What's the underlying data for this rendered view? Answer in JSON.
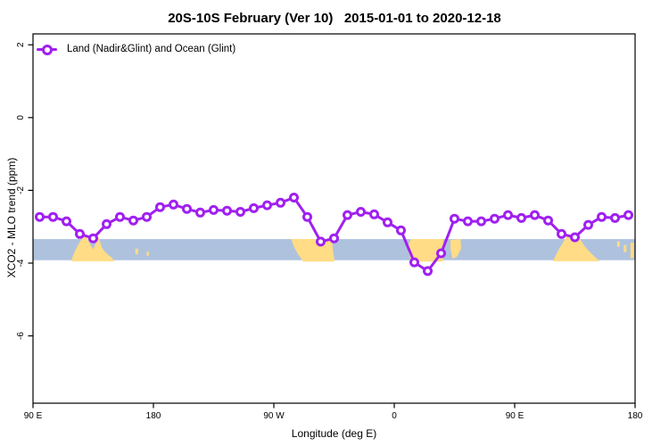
{
  "title": "20S-10S February (Ver 10)   2015-01-01 to 2020-12-18",
  "legend": {
    "label": "Land (Nadir&Glint) and Ocean (Glint)"
  },
  "chart_data": {
    "type": "line",
    "title": "20S-10S February (Ver 10)   2015-01-01 to 2020-12-18",
    "xlabel": "Longitude (deg E)",
    "ylabel": "XCO2 - MLO trend (ppm)",
    "xlim": [
      90,
      540
    ],
    "ylim": [
      -7.85,
      2.3
    ],
    "grid": false,
    "legend_position": "top-left",
    "x_ticks": [
      {
        "x": 90,
        "label": "90 E"
      },
      {
        "x": 180,
        "label": "180"
      },
      {
        "x": 270,
        "label": "90 W"
      },
      {
        "x": 360,
        "label": "0"
      },
      {
        "x": 450,
        "label": "90 E"
      },
      {
        "x": 540,
        "label": "180"
      }
    ],
    "y_ticks": [
      {
        "y": 2,
        "label": "2"
      },
      {
        "y": 0,
        "label": "0"
      },
      {
        "y": -2,
        "label": "-2"
      },
      {
        "y": -4,
        "label": "-4"
      },
      {
        "y": -6,
        "label": "-6"
      }
    ],
    "series": [
      {
        "name": "Land (Nadir&Glint) and Ocean (Glint)",
        "x_deg": [
          95,
          105,
          115,
          125,
          135,
          145,
          155,
          165,
          175,
          185,
          195,
          205,
          215,
          225,
          235,
          245,
          255,
          265,
          275,
          285,
          295,
          305,
          315,
          325,
          335,
          345,
          355,
          365,
          375,
          385,
          395,
          405,
          415,
          425,
          435,
          445,
          455,
          465,
          475,
          485,
          495,
          505,
          515,
          525,
          535
        ],
        "y_ppm": [
          -2.73,
          -2.73,
          -2.85,
          -3.2,
          -3.32,
          -2.93,
          -2.73,
          -2.83,
          -2.73,
          -2.46,
          -2.39,
          -2.51,
          -2.61,
          -2.54,
          -2.56,
          -2.59,
          -2.49,
          -2.41,
          -2.34,
          -2.2,
          -2.73,
          -3.41,
          -3.32,
          -2.68,
          -2.59,
          -2.66,
          -2.88,
          -3.1,
          -3.98,
          -4.22,
          -3.73,
          -2.78,
          -2.85,
          -2.85,
          -2.78,
          -2.68,
          -2.76,
          -2.68,
          -2.83,
          -3.2,
          -3.29,
          -2.95,
          -2.73,
          -2.76,
          -2.68
        ]
      }
    ],
    "ocean_band": {
      "top_ppm": -3.34,
      "bottom_ppm": -3.92
    },
    "land_patches": [
      {
        "name": "australia",
        "points": [
          [
            118.5,
            -3.95
          ],
          [
            120,
            -3.78
          ],
          [
            122,
            -3.62
          ],
          [
            124.5,
            -3.45
          ],
          [
            127,
            -3.3
          ],
          [
            129,
            -3.22
          ],
          [
            131,
            -3.35
          ],
          [
            133,
            -3.5
          ],
          [
            135,
            -3.62
          ],
          [
            137,
            -3.45
          ],
          [
            138.5,
            -3.24
          ],
          [
            140,
            -3.4
          ],
          [
            141.5,
            -3.58
          ],
          [
            144,
            -3.7
          ],
          [
            146.5,
            -3.78
          ],
          [
            149,
            -3.86
          ],
          [
            151,
            -3.95
          ]
        ]
      },
      {
        "name": "vanuatu-islands",
        "points": [
          [
            166.5,
            -3.6
          ],
          [
            168.5,
            -3.6
          ],
          [
            168.5,
            -3.76
          ],
          [
            166.5,
            -3.76
          ]
        ]
      },
      {
        "name": "fiji-islands",
        "points": [
          [
            175,
            -3.68
          ],
          [
            176.5,
            -3.68
          ],
          [
            176.5,
            -3.8
          ],
          [
            175,
            -3.8
          ]
        ]
      },
      {
        "name": "south-america",
        "points": [
          [
            283,
            -3.34
          ],
          [
            313.5,
            -3.34
          ],
          [
            314,
            -3.6
          ],
          [
            315.5,
            -3.96
          ],
          [
            292,
            -3.96
          ],
          [
            288,
            -3.75
          ],
          [
            285,
            -3.55
          ]
        ]
      },
      {
        "name": "africa",
        "points": [
          [
            370.5,
            -3.5
          ],
          [
            372.5,
            -3.34
          ],
          [
            396.5,
            -3.34
          ],
          [
            396.5,
            -3.96
          ],
          [
            373,
            -3.96
          ],
          [
            370.5,
            -3.7
          ]
        ]
      },
      {
        "name": "madagascar",
        "points": [
          [
            402,
            -3.36
          ],
          [
            409.5,
            -3.34
          ],
          [
            410,
            -3.6
          ],
          [
            407,
            -3.82
          ],
          [
            403.5,
            -3.88
          ],
          [
            402,
            -3.6
          ]
        ]
      },
      {
        "name": "australia-wrap",
        "points": [
          [
            478.5,
            -3.95
          ],
          [
            480.5,
            -3.8
          ],
          [
            483,
            -3.62
          ],
          [
            486,
            -3.45
          ],
          [
            488.5,
            -3.28
          ],
          [
            490.5,
            -3.2
          ],
          [
            492.5,
            -3.35
          ],
          [
            494.5,
            -3.28
          ],
          [
            497,
            -3.22
          ],
          [
            499.5,
            -3.38
          ],
          [
            502,
            -3.52
          ],
          [
            505,
            -3.65
          ],
          [
            508.5,
            -3.78
          ],
          [
            511.5,
            -3.88
          ],
          [
            513.5,
            -3.95
          ]
        ]
      },
      {
        "name": "island-speck-1",
        "points": [
          [
            526.5,
            -3.4
          ],
          [
            528.5,
            -3.4
          ],
          [
            528.5,
            -3.55
          ],
          [
            526.5,
            -3.55
          ]
        ]
      },
      {
        "name": "island-speck-2",
        "points": [
          [
            531.5,
            -3.5
          ],
          [
            533.5,
            -3.5
          ],
          [
            533.5,
            -3.7
          ],
          [
            531.5,
            -3.7
          ]
        ]
      },
      {
        "name": "island-speck-3",
        "points": [
          [
            536.5,
            -3.44
          ],
          [
            539,
            -3.44
          ],
          [
            539,
            -3.86
          ],
          [
            536.5,
            -3.86
          ]
        ]
      }
    ],
    "colors": {
      "line": "#A020F0",
      "marker_fill": "#FFFFFF",
      "ocean": "#AEC2DE",
      "land": "#FFDC85",
      "axis": "#000000"
    }
  }
}
